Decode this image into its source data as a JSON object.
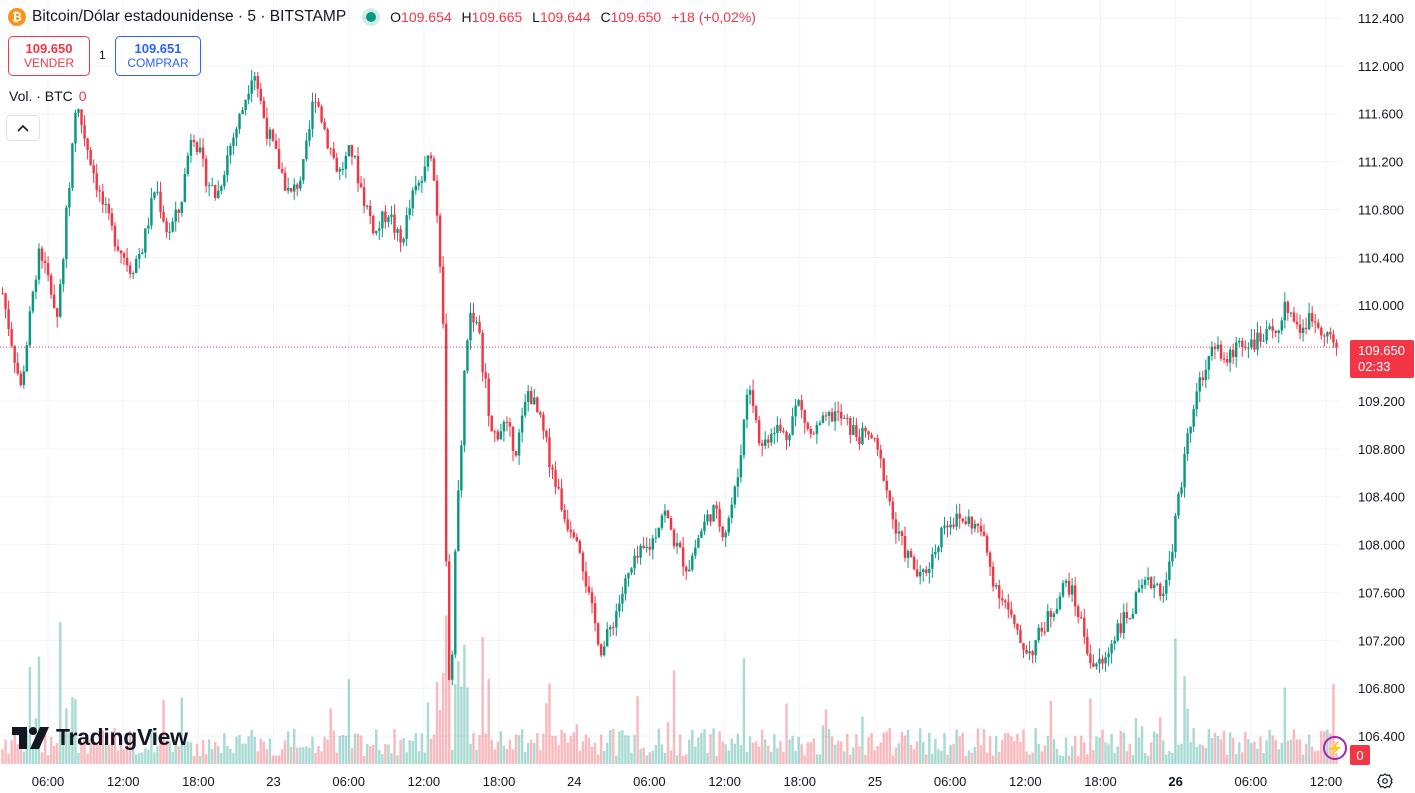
{
  "header": {
    "coin_symbol": "₿",
    "title": "Bitcoin/Dólar estadounidense · 5 · BITSTAMP",
    "ohlc": {
      "o_label": "O",
      "o": "109.654",
      "h_label": "H",
      "h": "109.665",
      "l_label": "L",
      "l": "109.644",
      "c_label": "C",
      "c": "109.650",
      "change": "+18 (+0,02%)"
    }
  },
  "trade": {
    "sell_price": "109.650",
    "sell_label": "VENDER",
    "spread": "1",
    "buy_price": "109.651",
    "buy_label": "COMPRAR"
  },
  "volume": {
    "label": "Vol. · BTC",
    "value": "0"
  },
  "brand": {
    "logo_text": "TradingView"
  },
  "price_tag": {
    "price": "109.650",
    "countdown": "02:33"
  },
  "alerts": {
    "count": "0"
  },
  "colors": {
    "up": "#089981",
    "down": "#f23645",
    "grid": "#f0f3fa",
    "text": "#131722"
  },
  "chart_data": {
    "type": "candlestick",
    "symbol": "BTCUSD",
    "interval": "5",
    "y_ticks": [
      "112.400",
      "112.000",
      "111.600",
      "111.200",
      "110.800",
      "110.400",
      "110.000",
      "109.650",
      "109.200",
      "108.800",
      "108.400",
      "108.000",
      "107.600",
      "107.200",
      "106.800",
      "106.400"
    ],
    "y_tick_values": [
      112400,
      112000,
      111600,
      111200,
      110800,
      110400,
      110000,
      109200,
      108800,
      108400,
      108000,
      107600,
      107200,
      106800,
      106400
    ],
    "ylim": [
      106200,
      112500
    ],
    "x_ticks": [
      "06:00",
      "12:00",
      "18:00",
      "23",
      "06:00",
      "12:00",
      "18:00",
      "24",
      "06:00",
      "12:00",
      "18:00",
      "25",
      "06:00",
      "12:00",
      "18:00",
      "26",
      "06:00",
      "12:00"
    ],
    "x_tick_bold": [
      false,
      false,
      false,
      false,
      false,
      false,
      false,
      false,
      false,
      false,
      false,
      false,
      false,
      false,
      false,
      true,
      false,
      false
    ],
    "last_price": 109650,
    "price_path": [
      [
        0,
        110100
      ],
      [
        1.5,
        109300
      ],
      [
        3,
        110500
      ],
      [
        4.5,
        109900
      ],
      [
        5.5,
        111100
      ],
      [
        6,
        111700
      ],
      [
        7,
        111300
      ],
      [
        8,
        110900
      ],
      [
        9,
        110600
      ],
      [
        10.5,
        110300
      ],
      [
        11.5,
        110500
      ],
      [
        12.5,
        111000
      ],
      [
        13.5,
        110600
      ],
      [
        14.5,
        110800
      ],
      [
        15.5,
        111500
      ],
      [
        16.5,
        111100
      ],
      [
        17.5,
        110900
      ],
      [
        18.5,
        111300
      ],
      [
        19.5,
        111600
      ],
      [
        20.5,
        112000
      ],
      [
        21.5,
        111500
      ],
      [
        22.5,
        111200
      ],
      [
        23.5,
        110900
      ],
      [
        24.5,
        111100
      ],
      [
        25,
        111400
      ],
      [
        25.5,
        111800
      ],
      [
        26.5,
        111400
      ],
      [
        27.5,
        111100
      ],
      [
        28.5,
        111300
      ],
      [
        29.5,
        110900
      ],
      [
        30.5,
        110600
      ],
      [
        31.5,
        110800
      ],
      [
        32.5,
        110500
      ],
      [
        33.5,
        110900
      ],
      [
        34.5,
        111100
      ],
      [
        35,
        111300
      ],
      [
        35.5,
        110800
      ],
      [
        36,
        109900
      ],
      [
        36.3,
        107500
      ],
      [
        36.6,
        106500
      ],
      [
        37,
        107900
      ],
      [
        37.8,
        109500
      ],
      [
        38.3,
        110000
      ],
      [
        39,
        109700
      ],
      [
        40,
        108900
      ],
      [
        41,
        109000
      ],
      [
        42,
        108800
      ],
      [
        43,
        109300
      ],
      [
        44,
        109000
      ],
      [
        45,
        108600
      ],
      [
        46,
        108200
      ],
      [
        47,
        108100
      ],
      [
        48,
        107500
      ],
      [
        49,
        107100
      ],
      [
        50,
        107400
      ],
      [
        51,
        107700
      ],
      [
        52,
        107900
      ],
      [
        53,
        108000
      ],
      [
        54,
        108300
      ],
      [
        55,
        108000
      ],
      [
        56,
        107800
      ],
      [
        57,
        108100
      ],
      [
        58,
        108300
      ],
      [
        59,
        108100
      ],
      [
        60,
        108500
      ],
      [
        61,
        109400
      ],
      [
        62,
        108800
      ],
      [
        63,
        109000
      ],
      [
        64,
        108900
      ],
      [
        65,
        109200
      ],
      [
        66,
        108900
      ],
      [
        67,
        109000
      ],
      [
        68,
        109100
      ],
      [
        69,
        109000
      ],
      [
        70,
        108900
      ],
      [
        71,
        108900
      ],
      [
        72,
        108600
      ],
      [
        73,
        108100
      ],
      [
        74,
        107900
      ],
      [
        75,
        107700
      ],
      [
        76,
        107900
      ],
      [
        77,
        108200
      ],
      [
        78,
        108200
      ],
      [
        79,
        108200
      ],
      [
        80,
        108100
      ],
      [
        81,
        107700
      ],
      [
        82,
        107500
      ],
      [
        83,
        107200
      ],
      [
        84,
        107100
      ],
      [
        85,
        107300
      ],
      [
        86,
        107500
      ],
      [
        87,
        107700
      ],
      [
        88,
        107400
      ],
      [
        89,
        107000
      ],
      [
        90,
        107000
      ],
      [
        91,
        107300
      ],
      [
        92,
        107400
      ],
      [
        93,
        107600
      ],
      [
        94,
        107700
      ],
      [
        95,
        107600
      ],
      [
        96,
        108300
      ],
      [
        97,
        109000
      ],
      [
        98,
        109400
      ],
      [
        99,
        109700
      ],
      [
        100,
        109500
      ],
      [
        101,
        109700
      ],
      [
        102,
        109700
      ],
      [
        103,
        109700
      ],
      [
        104,
        109800
      ],
      [
        105,
        110000
      ],
      [
        106,
        109800
      ],
      [
        107,
        109900
      ],
      [
        108,
        109800
      ],
      [
        109,
        109650
      ]
    ]
  }
}
